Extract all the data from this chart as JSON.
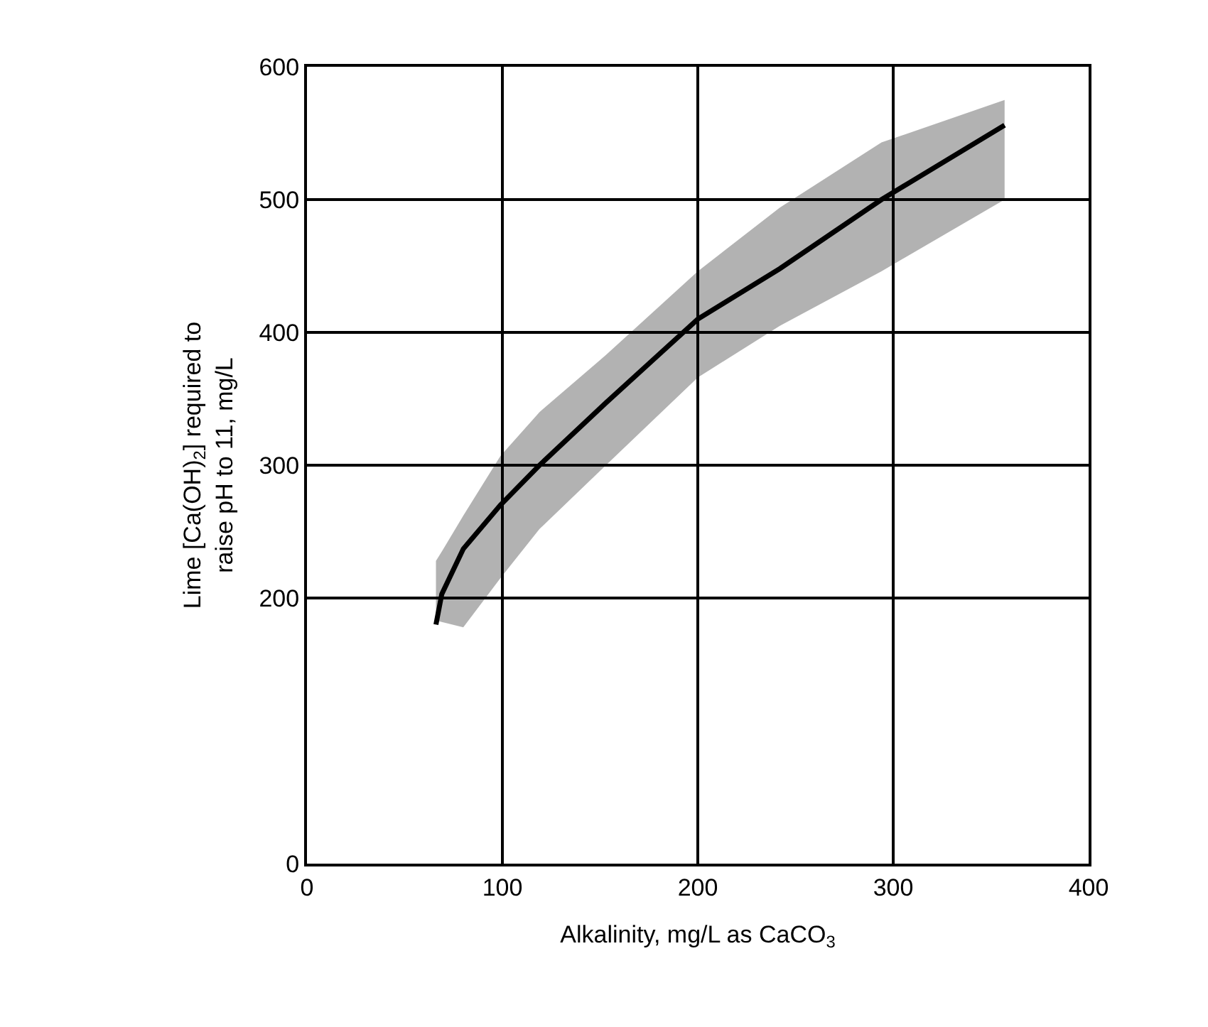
{
  "chart_data": {
    "type": "line",
    "xlabel": "Alkalinity, mg/L as CaCO$_{3}$",
    "ylabel": "Lime [Ca(OH)$_{2}$] required to\nraise pH to 11, mg/L",
    "series": [
      {
        "color": "#000000",
        "x": [
          66,
          69,
          80,
          99,
          119,
          153,
          200,
          242,
          294,
          357
        ],
        "values": [
          180,
          203,
          237,
          270,
          300,
          347,
          410,
          448,
          500,
          556
        ],
        "lower": [
          183,
          182,
          178,
          215,
          252,
          300,
          366,
          405,
          446,
          500
        ],
        "upper": [
          228,
          235,
          262,
          307,
          340,
          383,
          446,
          494,
          543,
          575
        ]
      }
    ],
    "xlim": [
      0,
      400
    ],
    "xticks": [
      0,
      100,
      200,
      300,
      400
    ],
    "ylim": [
      0,
      600
    ],
    "yticks": [
      0,
      200,
      300,
      400,
      500,
      600
    ],
    "grid": true,
    "marker": "none",
    "line_style": "solid"
  }
}
